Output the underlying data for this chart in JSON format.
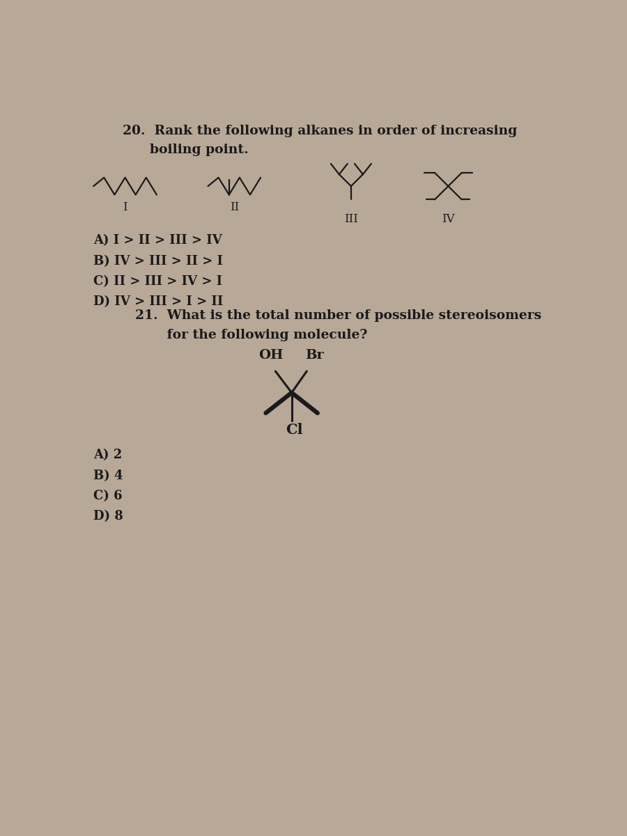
{
  "bg_color": "#b8a898",
  "page_color": "#d8cfc4",
  "q20_title_line1": "20.  Rank the following alkanes in order of increasing",
  "q20_title_line2": "      boiling point.",
  "q20_answers": [
    "A) I > II > III > IV",
    "B) IV > III > II > I",
    "C) II > III > IV > I",
    "D) IV > III > I > II"
  ],
  "q21_title_line1": "21.  What is the total number of possible stereoisomers",
  "q21_title_line2": "       for the following molecule?",
  "q21_answers": [
    "A) 2",
    "B) 4",
    "C) 6",
    "D) 8"
  ],
  "roman_labels": [
    "I",
    "II",
    "III",
    "IV"
  ],
  "mol_color": "#1a1a1a",
  "text_color": "#1a1a1a",
  "title_fontsize": 13.5,
  "ans_fontsize": 13,
  "roman_fontsize": 12,
  "mol21_fontsize": 14
}
